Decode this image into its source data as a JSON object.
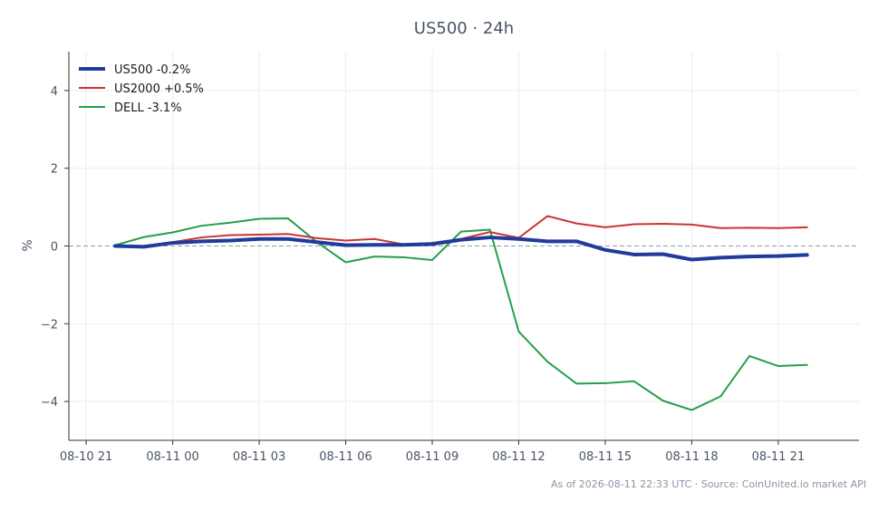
{
  "chart_data": {
    "type": "line",
    "title": "US500 · 24h",
    "ylabel": "%",
    "xlabel": "",
    "x_tick_labels": [
      "08-10 21",
      "08-11 00",
      "08-11 03",
      "08-11 06",
      "08-11 09",
      "08-11 12",
      "08-11 15",
      "08-11 18",
      "08-11 21"
    ],
    "y_ticks": [
      4,
      2,
      0,
      -2,
      -4
    ],
    "y_tick_labels": [
      "4",
      "2",
      "0",
      "−2",
      "−4"
    ],
    "ylim": [
      -5,
      5
    ],
    "x_hours_range": [
      -0.6,
      26.8
    ],
    "x_hours": [
      1,
      2,
      3,
      4,
      5,
      6,
      7,
      8,
      9,
      10,
      11,
      12,
      13,
      14,
      15,
      16,
      17,
      18,
      19,
      20,
      21,
      22,
      23,
      24,
      25
    ],
    "series": [
      {
        "name": "US500 -0.2%",
        "color": "#1f3b9b",
        "width": 4,
        "values": [
          0.0,
          -0.02,
          0.08,
          0.12,
          0.14,
          0.18,
          0.18,
          0.1,
          0.02,
          0.03,
          0.03,
          0.05,
          0.16,
          0.22,
          0.18,
          0.12,
          0.12,
          -0.1,
          -0.22,
          -0.21,
          -0.35,
          -0.3,
          -0.27,
          -0.26,
          -0.23
        ]
      },
      {
        "name": "US2000 +0.5%",
        "color": "#cc3333",
        "width": 2,
        "values": [
          0.02,
          0.0,
          0.1,
          0.22,
          0.28,
          0.29,
          0.31,
          0.2,
          0.14,
          0.18,
          0.04,
          0.08,
          0.18,
          0.36,
          0.21,
          0.77,
          0.58,
          0.48,
          0.56,
          0.57,
          0.55,
          0.46,
          0.47,
          0.46,
          0.48
        ]
      },
      {
        "name": "DELL -3.1%",
        "color": "#22a04b",
        "width": 2,
        "values": [
          0.02,
          0.23,
          0.35,
          0.52,
          0.6,
          0.7,
          0.71,
          0.1,
          -0.42,
          -0.27,
          -0.29,
          -0.36,
          0.37,
          0.42,
          -2.2,
          -2.98,
          -3.54,
          -3.53,
          -3.48,
          -3.98,
          -4.22,
          -3.87,
          -2.83,
          -3.09,
          -3.06
        ]
      }
    ],
    "zero_line": true,
    "grid": true,
    "legend_position": "top-left"
  },
  "footer": "As of 2026-08-11 22:33 UTC · Source: CoinUnited.io market API"
}
